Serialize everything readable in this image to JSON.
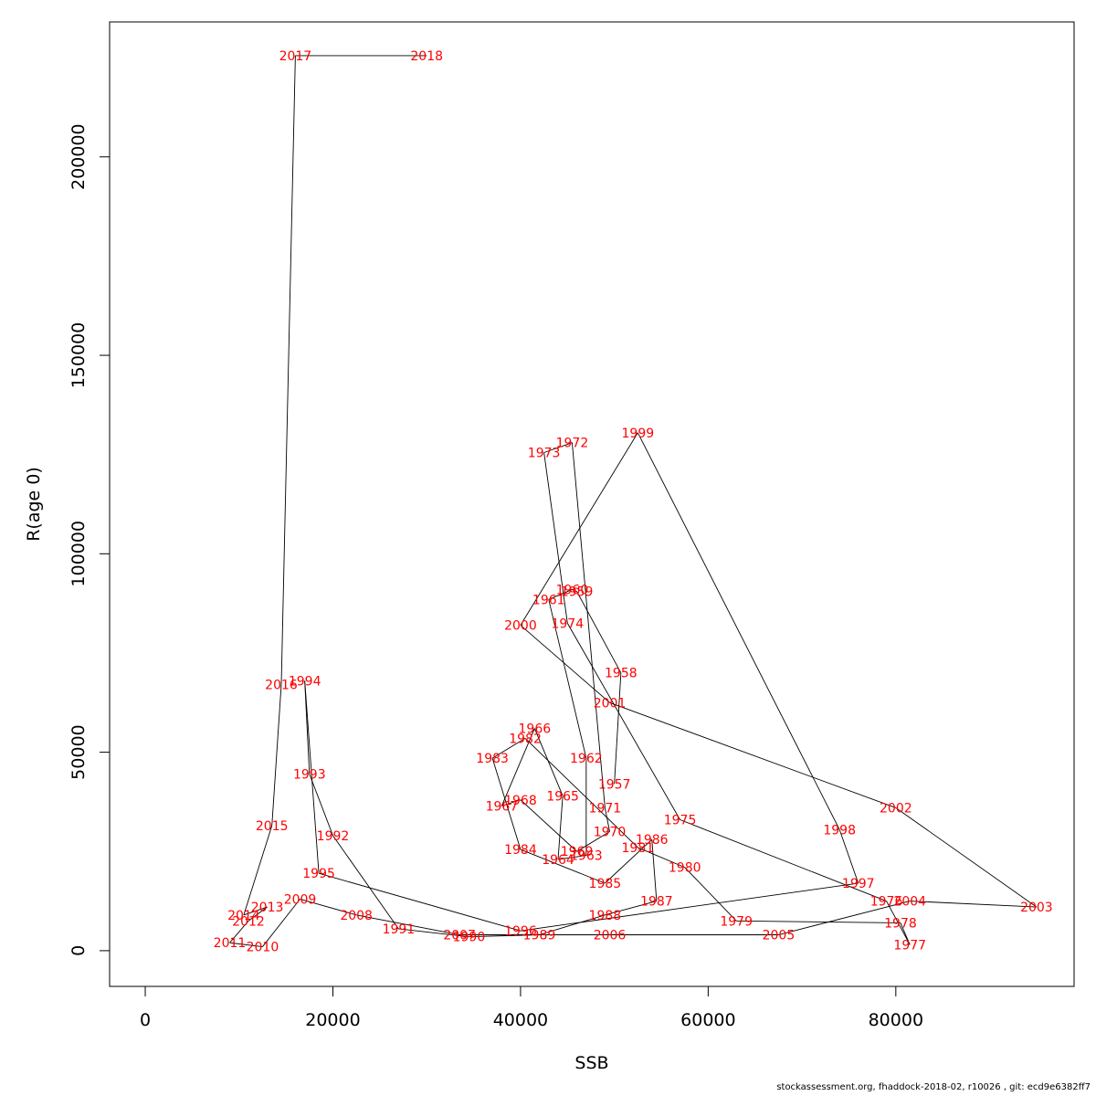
{
  "chart_data": {
    "type": "line",
    "title": "",
    "xlabel": "SSB",
    "ylabel": "R(age 0)",
    "xlim": [
      -3800,
      99000
    ],
    "ylim": [
      -9000,
      234000
    ],
    "x_ticks": [
      0,
      20000,
      40000,
      60000,
      80000
    ],
    "y_ticks": [
      0,
      50000,
      100000,
      150000,
      200000
    ],
    "grid": false,
    "series": [
      {
        "point_color": "#ff0000",
        "line_color": "#000000",
        "points": [
          {
            "year": "1957",
            "x": 50000,
            "y": 42000
          },
          {
            "year": "1958",
            "x": 50700,
            "y": 70000
          },
          {
            "year": "1959",
            "x": 46000,
            "y": 90500
          },
          {
            "year": "1960",
            "x": 45500,
            "y": 91000
          },
          {
            "year": "1961",
            "x": 43000,
            "y": 88500
          },
          {
            "year": "1962",
            "x": 47000,
            "y": 48500
          },
          {
            "year": "1963",
            "x": 47000,
            "y": 24000
          },
          {
            "year": "1964",
            "x": 44000,
            "y": 23000
          },
          {
            "year": "1965",
            "x": 44500,
            "y": 39000
          },
          {
            "year": "1966",
            "x": 41500,
            "y": 56000
          },
          {
            "year": "1967",
            "x": 38000,
            "y": 36500
          },
          {
            "year": "1968",
            "x": 40000,
            "y": 38000
          },
          {
            "year": "1969",
            "x": 46000,
            "y": 25000
          },
          {
            "year": "1970",
            "x": 49500,
            "y": 30000
          },
          {
            "year": "1971",
            "x": 49000,
            "y": 36000
          },
          {
            "year": "1972",
            "x": 45500,
            "y": 128000
          },
          {
            "year": "1973",
            "x": 42500,
            "y": 125500
          },
          {
            "year": "1974",
            "x": 45000,
            "y": 82500
          },
          {
            "year": "1975",
            "x": 57000,
            "y": 33000
          },
          {
            "year": "1976",
            "x": 79000,
            "y": 12500
          },
          {
            "year": "1977",
            "x": 81500,
            "y": 1500
          },
          {
            "year": "1978",
            "x": 80500,
            "y": 7000
          },
          {
            "year": "1979",
            "x": 63000,
            "y": 7500
          },
          {
            "year": "1980",
            "x": 57500,
            "y": 21000
          },
          {
            "year": "1981",
            "x": 52500,
            "y": 26000
          },
          {
            "year": "1982",
            "x": 40500,
            "y": 53500
          },
          {
            "year": "1983",
            "x": 37000,
            "y": 48500
          },
          {
            "year": "1984",
            "x": 40000,
            "y": 25500
          },
          {
            "year": "1985",
            "x": 49000,
            "y": 17000
          },
          {
            "year": "1986",
            "x": 54000,
            "y": 28000
          },
          {
            "year": "1987",
            "x": 54500,
            "y": 12500
          },
          {
            "year": "1988",
            "x": 49000,
            "y": 9000
          },
          {
            "year": "1989",
            "x": 42000,
            "y": 4000
          },
          {
            "year": "1990",
            "x": 34500,
            "y": 3500
          },
          {
            "year": "1991",
            "x": 27000,
            "y": 5500
          },
          {
            "year": "1992",
            "x": 20000,
            "y": 29000
          },
          {
            "year": "1993",
            "x": 17500,
            "y": 44500
          },
          {
            "year": "1994",
            "x": 17000,
            "y": 68000
          },
          {
            "year": "1995",
            "x": 18500,
            "y": 19500
          },
          {
            "year": "1996",
            "x": 40000,
            "y": 5000
          },
          {
            "year": "1997",
            "x": 76000,
            "y": 17000
          },
          {
            "year": "1998",
            "x": 74000,
            "y": 30500
          },
          {
            "year": "1999",
            "x": 52500,
            "y": 130500
          },
          {
            "year": "2000",
            "x": 40000,
            "y": 82000
          },
          {
            "year": "2001",
            "x": 49500,
            "y": 62500
          },
          {
            "year": "2002",
            "x": 80000,
            "y": 36000
          },
          {
            "year": "2003",
            "x": 95000,
            "y": 11000
          },
          {
            "year": "2004",
            "x": 81500,
            "y": 12500
          },
          {
            "year": "2005",
            "x": 67500,
            "y": 4000
          },
          {
            "year": "2006",
            "x": 49500,
            "y": 4000
          },
          {
            "year": "2007",
            "x": 33500,
            "y": 4000
          },
          {
            "year": "2008",
            "x": 22500,
            "y": 9000
          },
          {
            "year": "2009",
            "x": 16500,
            "y": 13000
          },
          {
            "year": "2010",
            "x": 12500,
            "y": 1000
          },
          {
            "year": "2011",
            "x": 9000,
            "y": 2000
          },
          {
            "year": "2012",
            "x": 11000,
            "y": 7500
          },
          {
            "year": "2013",
            "x": 13000,
            "y": 11000
          },
          {
            "year": "2014",
            "x": 10500,
            "y": 9000
          },
          {
            "year": "2015",
            "x": 13500,
            "y": 31500
          },
          {
            "year": "2016",
            "x": 14500,
            "y": 67000
          },
          {
            "year": "2017",
            "x": 16000,
            "y": 225500
          },
          {
            "year": "2018",
            "x": 30000,
            "y": 225500
          }
        ]
      }
    ]
  },
  "footer": "stockassessment.org, fhaddock-2018-02, r10026 , git: ecd9e6382ff7"
}
